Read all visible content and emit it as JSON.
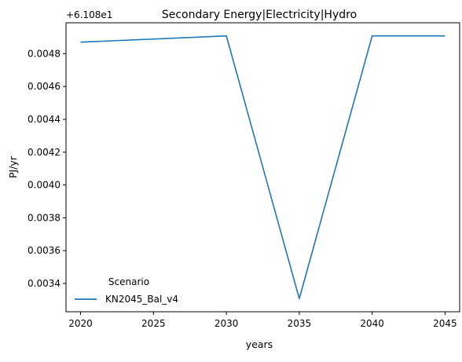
{
  "chart_data": {
    "type": "line",
    "title": "Secondary Energy|Electricity|Hydro",
    "xlabel": "years",
    "ylabel": "PJ/yr",
    "offset_label": "+6.108e1",
    "x": [
      2020,
      2030,
      2035,
      2040,
      2045
    ],
    "series": [
      {
        "name": "KN2045_Bal_v4",
        "color": "#1f77b4",
        "values": [
          0.00487,
          0.004908,
          0.003308,
          0.004908,
          0.004908
        ]
      }
    ],
    "xlim": [
      2019,
      2046
    ],
    "ylim": [
      0.003228,
      0.004988
    ],
    "x_ticks": [
      2020,
      2025,
      2030,
      2035,
      2040,
      2045
    ],
    "x_tick_labels": [
      "2020",
      "2025",
      "2030",
      "2035",
      "2040",
      "2045"
    ],
    "y_ticks": [
      0.0034,
      0.0036,
      0.0038,
      0.004,
      0.0042,
      0.0044,
      0.0046,
      0.0048
    ],
    "y_tick_labels": [
      "0.0034",
      "0.0036",
      "0.0038",
      "0.0040",
      "0.0042",
      "0.0044",
      "0.0046",
      "0.0048"
    ],
    "grid": false,
    "legend": {
      "title": "Scenario",
      "placement": "lower-left",
      "entries": [
        "KN2045_Bal_v4"
      ]
    }
  }
}
